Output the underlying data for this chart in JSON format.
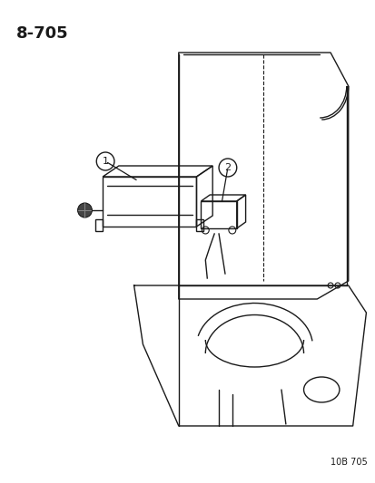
{
  "title": "8-705",
  "figure_number": "10B 705",
  "background_color": "#ffffff",
  "line_color": "#1a1a1a",
  "label1": "1",
  "label2": "2",
  "figsize": [
    4.14,
    5.33
  ],
  "dpi": 100
}
